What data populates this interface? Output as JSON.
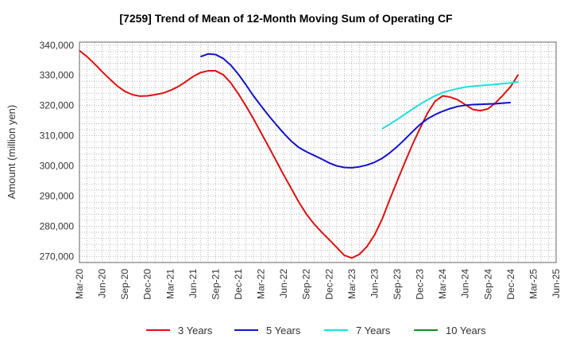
{
  "chart_data": {
    "type": "line",
    "title": "[7259]  Trend of Mean of 12-Month Moving Sum of Operating CF",
    "xlabel": "",
    "ylabel": "Amount (million yen)",
    "ylim": [
      268000,
      341000
    ],
    "y_ticks": [
      270000,
      280000,
      290000,
      300000,
      310000,
      320000,
      330000,
      340000
    ],
    "y_tick_labels": [
      "270,000",
      "280,000",
      "290,000",
      "300,000",
      "310,000",
      "320,000",
      "330,000",
      "340,000"
    ],
    "x_tick_labels": [
      "Mar-20",
      "Jun-20",
      "Sep-20",
      "Dec-20",
      "Mar-21",
      "Jun-21",
      "Sep-21",
      "Dec-21",
      "Mar-22",
      "Jun-22",
      "Sep-22",
      "Dec-22",
      "Mar-23",
      "Jun-23",
      "Sep-23",
      "Dec-23",
      "Mar-24",
      "Jun-24",
      "Sep-24",
      "Dec-24",
      "Mar-25",
      "Jun-25"
    ],
    "grid": true,
    "legend_position": "bottom",
    "series": [
      {
        "name": "3 Years",
        "color": "#dd1111",
        "start_index": 0,
        "values": [
          338200,
          336200,
          333800,
          331200,
          328800,
          326500,
          324700,
          323600,
          323100,
          323200,
          323600,
          324100,
          325000,
          326200,
          327800,
          329600,
          330900,
          331500,
          331500,
          330200,
          327500,
          323900,
          319900,
          315600,
          311000,
          306400,
          301700,
          297000,
          292500,
          288000,
          284000,
          280800,
          278100,
          275600,
          273000,
          270400,
          269500,
          270700,
          273300,
          277100,
          282300,
          288800,
          295000,
          301100,
          307000,
          312400,
          317500,
          321400,
          323200,
          322800,
          321900,
          320300,
          318700,
          318300,
          318900,
          320900,
          323500,
          326300,
          330300
        ]
      },
      {
        "name": "5 Years",
        "color": "#1111cc",
        "start_index": 16,
        "values": [
          336200,
          337100,
          336900,
          335600,
          333400,
          330400,
          326900,
          323200,
          319900,
          316700,
          313700,
          310800,
          308200,
          306100,
          304700,
          303500,
          302300,
          301000,
          300000,
          299500,
          299400,
          299700,
          300300,
          301200,
          302500,
          304300,
          306400,
          308800,
          311300,
          313700,
          315600,
          317000,
          318100,
          319000,
          319700,
          320100,
          320300,
          320400,
          320500,
          320600,
          320800,
          321000
        ]
      },
      {
        "name": "7 Years",
        "color": "#22dddd",
        "start_index": 40,
        "values": [
          312300,
          313800,
          315400,
          317100,
          318800,
          320400,
          321900,
          323200,
          324300,
          325000,
          325600,
          326100,
          326400,
          326600,
          326800,
          327000,
          327300,
          327500,
          327800
        ]
      },
      {
        "name": "10 Years",
        "color": "#1a8a1a",
        "start_index": 0,
        "values": []
      }
    ]
  }
}
